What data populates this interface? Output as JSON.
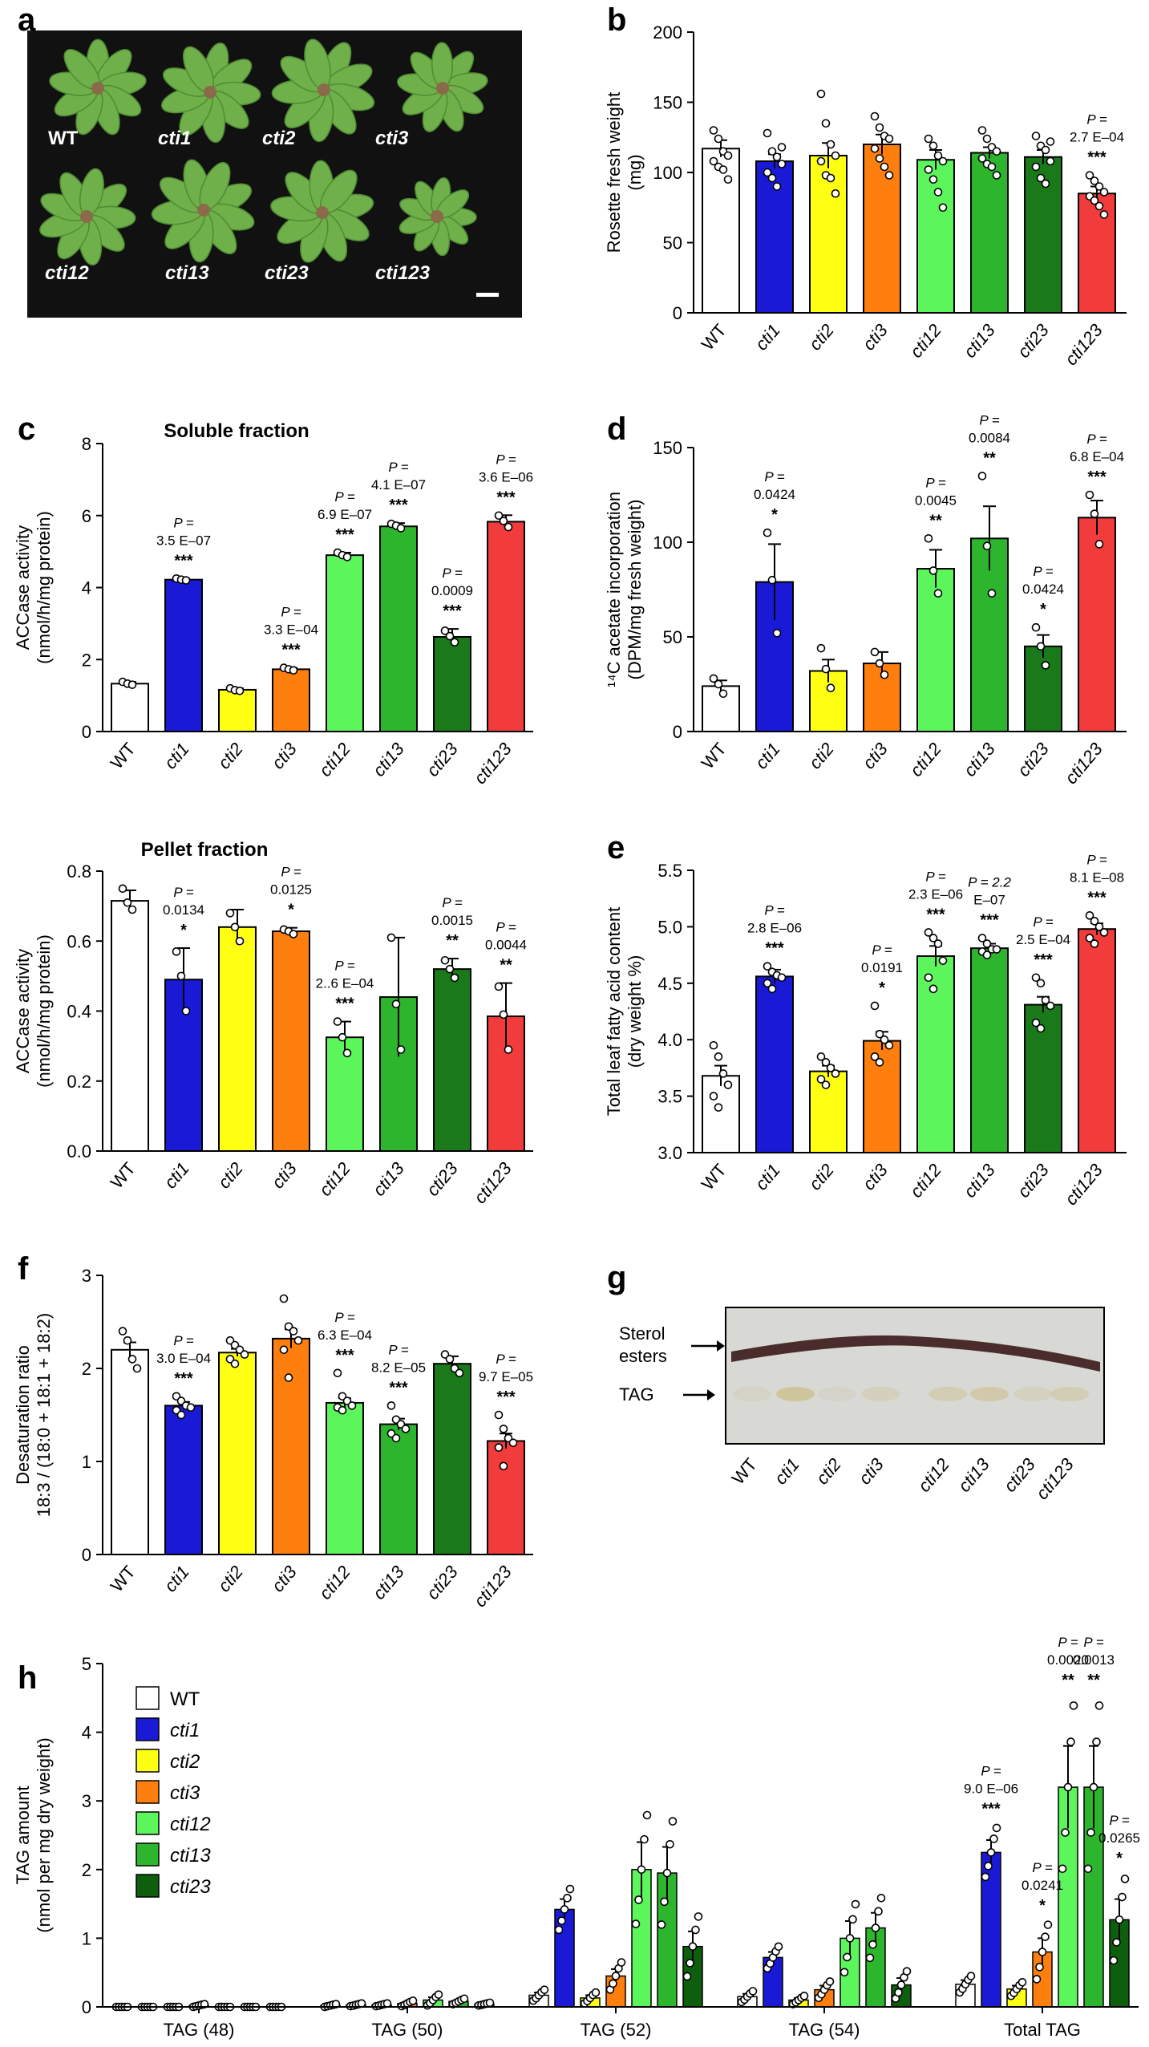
{
  "panel_letters": [
    "a",
    "b",
    "c",
    "d",
    "e",
    "f",
    "g",
    "h"
  ],
  "photo": {
    "labels": [
      "WT",
      "cti1",
      "cti2",
      "cti3",
      "cti12",
      "cti13",
      "cti23",
      "cti123"
    ],
    "background": "#111111",
    "leaf_color": "#6fb04a"
  },
  "colors": {
    "WT": "#ffffff",
    "cti1": "#1a1ad6",
    "cti2": "#ffff14",
    "cti3": "#ff7f0e",
    "cti12": "#5cf55c",
    "cti13": "#2db52d",
    "cti23": "#1a7a1a",
    "cti123": "#f23c3c",
    "cti23_h": "#0d5e0d",
    "extra_h": "#444444"
  },
  "chart_data": [
    {
      "id": "b",
      "type": "bar",
      "categories": [
        "WT",
        "cti1",
        "cti2",
        "cti3",
        "cti12",
        "cti13",
        "cti23",
        "cti123"
      ],
      "values": [
        117,
        108,
        112,
        120,
        109,
        114,
        111,
        85
      ],
      "errors": [
        6,
        5,
        9,
        7,
        7,
        4,
        5,
        5
      ],
      "points": [
        [
          130,
          124,
          115,
          112,
          108,
          104,
          102,
          95
        ],
        [
          128,
          115,
          111,
          106,
          100,
          96,
          90,
          118
        ],
        [
          156,
          135,
          120,
          112,
          108,
          98,
          96,
          85
        ],
        [
          140,
          132,
          126,
          124,
          117,
          110,
          104,
          98
        ],
        [
          124,
          119,
          112,
          108,
          102,
          95,
          86,
          75
        ],
        [
          130,
          124,
          118,
          115,
          110,
          106,
          104,
          98
        ],
        [
          126,
          119,
          116,
          108,
          104,
          96,
          92,
          122
        ],
        [
          98,
          94,
          90,
          86,
          83,
          80,
          76,
          70
        ]
      ],
      "ylabel": "Rosette fresh weight\n(mg)",
      "ylim": [
        0,
        200
      ],
      "yticks": [
        0,
        50,
        100,
        150,
        200
      ],
      "annotations": [
        {
          "index": 7,
          "p": [
            "P =",
            "2.7 E–04"
          ],
          "stars": "***"
        }
      ]
    },
    {
      "id": "c_soluble",
      "type": "bar",
      "title": "Soluble fraction",
      "categories": [
        "WT",
        "cti1",
        "cti2",
        "cti3",
        "cti12",
        "cti13",
        "cti23",
        "cti123"
      ],
      "values": [
        1.33,
        4.22,
        1.16,
        1.73,
        4.9,
        5.7,
        2.63,
        5.83
      ],
      "errors": [
        0.05,
        0.03,
        0.04,
        0.04,
        0.07,
        0.09,
        0.22,
        0.18
      ],
      "points": [
        [
          1.38,
          1.33,
          1.3
        ],
        [
          4.25,
          4.22,
          4.2
        ],
        [
          1.2,
          1.15,
          1.13
        ],
        [
          1.77,
          1.73,
          1.7
        ],
        [
          4.97,
          4.9,
          4.85
        ],
        [
          5.77,
          5.72,
          5.65
        ],
        [
          2.8,
          2.65,
          2.48
        ],
        [
          6.0,
          5.85,
          5.68
        ]
      ],
      "ylabel": "ACCase activity\n(nmol/h/mg protein)",
      "ylim": [
        0,
        8
      ],
      "yticks": [
        0,
        2,
        4,
        6,
        8
      ],
      "annotations": [
        {
          "index": 1,
          "p": [
            "P =",
            "3.5 E–07"
          ],
          "stars": "***"
        },
        {
          "index": 3,
          "p": [
            "P =",
            "3.3 E–04"
          ],
          "stars": "***"
        },
        {
          "index": 4,
          "p": [
            "P =",
            "6.9 E–07"
          ],
          "stars": "***"
        },
        {
          "index": 5,
          "p": [
            "P =",
            "4.1 E–07"
          ],
          "stars": "***"
        },
        {
          "index": 6,
          "p": [
            "P =",
            "0.0009"
          ],
          "stars": "***"
        },
        {
          "index": 7,
          "p": [
            "P =",
            "3.6 E–06"
          ],
          "stars": "***"
        }
      ]
    },
    {
      "id": "c_pellet",
      "type": "bar",
      "title": "Pellet fraction",
      "categories": [
        "WT",
        "cti1",
        "cti2",
        "cti3",
        "cti12",
        "cti13",
        "cti23",
        "cti123"
      ],
      "values": [
        0.715,
        0.49,
        0.64,
        0.628,
        0.325,
        0.44,
        0.52,
        0.385
      ],
      "errors": [
        0.03,
        0.09,
        0.05,
        0.01,
        0.045,
        0.17,
        0.03,
        0.095
      ],
      "points": [
        [
          0.75,
          0.71,
          0.69
        ],
        [
          0.57,
          0.5,
          0.4
        ],
        [
          0.68,
          0.64,
          0.6
        ],
        [
          0.633,
          0.628,
          0.62
        ],
        [
          0.37,
          0.325,
          0.28
        ],
        [
          0.61,
          0.42,
          0.29
        ],
        [
          0.545,
          0.52,
          0.495
        ],
        [
          0.47,
          0.39,
          0.29
        ]
      ],
      "ylabel": "ACCase activity\n(nmol/h/mg protein)",
      "ylim": [
        0,
        0.8
      ],
      "yticks": [
        0,
        0.2,
        0.4,
        0.6,
        0.8
      ],
      "annotations": [
        {
          "index": 1,
          "p": [
            "P =",
            "0.0134"
          ],
          "stars": "*"
        },
        {
          "index": 3,
          "p": [
            "P =",
            "0.0125"
          ],
          "stars": "*"
        },
        {
          "index": 4,
          "p": [
            "P =",
            "2..6 E–04"
          ],
          "stars": "***"
        },
        {
          "index": 6,
          "p": [
            "P =",
            "0.0015"
          ],
          "stars": "**"
        },
        {
          "index": 7,
          "p": [
            "P =",
            "0.0044"
          ],
          "stars": "**"
        }
      ]
    },
    {
      "id": "d",
      "type": "bar",
      "categories": [
        "WT",
        "cti1",
        "cti2",
        "cti3",
        "cti12",
        "cti13",
        "cti23",
        "cti123"
      ],
      "values": [
        24,
        79,
        32,
        36,
        86,
        102,
        45,
        113
      ],
      "errors": [
        3,
        20,
        6,
        6,
        10,
        17,
        6,
        9
      ],
      "points": [
        [
          28,
          25,
          20
        ],
        [
          105,
          80,
          52
        ],
        [
          44,
          33,
          23
        ],
        [
          42,
          36,
          30
        ],
        [
          102,
          85,
          73
        ],
        [
          135,
          98,
          73
        ],
        [
          55,
          45,
          35
        ],
        [
          125,
          115,
          99
        ]
      ],
      "ylabel": "¹⁴C acetate incorporation\n(DPM/mg fresh weight)",
      "ylim": [
        0,
        150
      ],
      "yticks": [
        0,
        50,
        100,
        150
      ],
      "annotations": [
        {
          "index": 1,
          "p": [
            "P =",
            "0.0424"
          ],
          "stars": "*"
        },
        {
          "index": 4,
          "p": [
            "P =",
            "0.0045"
          ],
          "stars": "**"
        },
        {
          "index": 5,
          "p": [
            "P =",
            "0.0084"
          ],
          "stars": "**"
        },
        {
          "index": 6,
          "p": [
            "P =",
            "0.0424"
          ],
          "stars": "*"
        },
        {
          "index": 7,
          "p": [
            "P =",
            "6.8 E–04"
          ],
          "stars": "***"
        }
      ]
    },
    {
      "id": "e",
      "type": "bar",
      "categories": [
        "WT",
        "cti1",
        "cti2",
        "cti3",
        "cti12",
        "cti13",
        "cti23",
        "cti123"
      ],
      "values": [
        3.68,
        4.56,
        3.72,
        3.99,
        4.74,
        4.81,
        4.31,
        4.98
      ],
      "errors": [
        0.09,
        0.06,
        0.05,
        0.08,
        0.09,
        0.04,
        0.07,
        0.05
      ],
      "points": [
        [
          3.95,
          3.85,
          3.7,
          3.6,
          3.5,
          3.4
        ],
        [
          4.65,
          4.6,
          4.57,
          4.55,
          4.5,
          4.45
        ],
        [
          3.85,
          3.8,
          3.75,
          3.7,
          3.65,
          3.6
        ],
        [
          4.3,
          4.05,
          4.0,
          3.95,
          3.85,
          3.8
        ],
        [
          4.95,
          4.9,
          4.85,
          4.7,
          4.55,
          4.45
        ],
        [
          4.9,
          4.85,
          4.8,
          4.8,
          4.78,
          4.75
        ],
        [
          4.55,
          4.5,
          4.35,
          4.3,
          4.15,
          4.1
        ],
        [
          5.1,
          5.05,
          5.0,
          4.95,
          4.9,
          4.85
        ]
      ],
      "ylabel": "Total leaf fatty acid content\n(dry weight %)",
      "ylim": [
        3.0,
        5.5
      ],
      "yticks": [
        3.0,
        3.5,
        4.0,
        4.5,
        5.0,
        5.5
      ],
      "annotations": [
        {
          "index": 1,
          "p": [
            "P =",
            "2.8 E–06"
          ],
          "stars": "***"
        },
        {
          "index": 3,
          "p": [
            "P =",
            "0.0191"
          ],
          "stars": "*"
        },
        {
          "index": 4,
          "p": [
            "P =",
            "2.3 E–06"
          ],
          "stars": "***"
        },
        {
          "index": 5,
          "p": [
            "P = 2.2",
            "E–07"
          ],
          "stars": "***"
        },
        {
          "index": 6,
          "p": [
            "P =",
            "2.5 E–04"
          ],
          "stars": "***"
        },
        {
          "index": 7,
          "p": [
            "P =",
            "8.1 E–08"
          ],
          "stars": "***"
        }
      ]
    },
    {
      "id": "f",
      "type": "bar",
      "categories": [
        "WT",
        "cti1",
        "cti2",
        "cti3",
        "cti12",
        "cti13",
        "cti23",
        "cti123"
      ],
      "values": [
        2.2,
        1.6,
        2.17,
        2.32,
        1.63,
        1.4,
        2.05,
        1.22
      ],
      "errors": [
        0.08,
        0.04,
        0.04,
        0.1,
        0.05,
        0.06,
        0.08,
        0.08
      ],
      "points": [
        [
          2.4,
          2.3,
          2.1,
          2.0
        ],
        [
          1.7,
          1.65,
          1.6,
          1.58,
          1.55,
          1.5
        ],
        [
          2.3,
          2.25,
          2.2,
          2.15,
          2.1,
          2.05
        ],
        [
          2.75,
          2.45,
          2.4,
          2.3,
          2.2,
          1.9
        ],
        [
          1.95,
          1.7,
          1.65,
          1.6,
          1.58,
          1.55
        ],
        [
          1.6,
          1.45,
          1.4,
          1.35,
          1.3,
          1.25
        ],
        [
          2.15,
          2.1,
          2.0,
          1.95
        ],
        [
          1.5,
          1.35,
          1.25,
          1.2,
          1.15,
          0.95
        ]
      ],
      "ylabel": "Desaturation ratio\n18:3 / (18:0 + 18:1 + 18:2)",
      "ylim": [
        0,
        3
      ],
      "yticks": [
        0,
        1,
        2,
        3
      ],
      "annotations": [
        {
          "index": 1,
          "p": [
            "P =",
            "3.0 E–04"
          ],
          "stars": "***"
        },
        {
          "index": 4,
          "p": [
            "P =",
            "6.3 E–04"
          ],
          "stars": "***"
        },
        {
          "index": 5,
          "p": [
            "P =",
            "8.2 E–05"
          ],
          "stars": "***"
        },
        {
          "index": 7,
          "p": [
            "P =",
            "9.7 E–05"
          ],
          "stars": "***"
        }
      ]
    },
    {
      "id": "h",
      "type": "bar",
      "groups": [
        "TAG (48)",
        "TAG (50)",
        "TAG (52)",
        "TAG (54)",
        "Total TAG"
      ],
      "series": [
        {
          "name": "WT",
          "values": [
            0.0,
            0.02,
            0.17,
            0.15,
            0.33
          ],
          "errors": [
            0.0,
            0.01,
            0.04,
            0.04,
            0.06
          ]
        },
        {
          "name": "cti1",
          "values": [
            0.0,
            0.03,
            1.42,
            0.72,
            2.25
          ],
          "errors": [
            0.0,
            0.01,
            0.15,
            0.08,
            0.18
          ]
        },
        {
          "name": "cti2",
          "values": [
            0.0,
            0.03,
            0.13,
            0.1,
            0.26
          ],
          "errors": [
            0.0,
            0.01,
            0.04,
            0.03,
            0.05
          ]
        },
        {
          "name": "cti3",
          "values": [
            0.02,
            0.05,
            0.45,
            0.25,
            0.8
          ],
          "errors": [
            0.01,
            0.02,
            0.1,
            0.06,
            0.2
          ]
        },
        {
          "name": "cti12",
          "values": [
            0.0,
            0.1,
            2.0,
            1.0,
            3.2
          ],
          "errors": [
            0.0,
            0.04,
            0.4,
            0.25,
            0.6
          ]
        },
        {
          "name": "cti13",
          "values": [
            0.0,
            0.08,
            1.95,
            1.15,
            3.2
          ],
          "errors": [
            0.0,
            0.02,
            0.38,
            0.22,
            0.6
          ]
        },
        {
          "name": "cti23",
          "values": [
            0.0,
            0.04,
            0.88,
            0.32,
            1.27
          ],
          "errors": [
            0.0,
            0.01,
            0.22,
            0.1,
            0.3
          ]
        }
      ],
      "ylabel": "TAG amount\n(nmol per mg dry weight)",
      "ylim": [
        0,
        5
      ],
      "yticks": [
        0,
        1,
        2,
        3,
        4,
        5
      ],
      "annotations": [
        {
          "group": 4,
          "series": 1,
          "p": [
            "P =",
            "9.0 E–06"
          ],
          "stars": "***"
        },
        {
          "group": 4,
          "series": 3,
          "p": [
            "P =",
            "0.0241"
          ],
          "stars": "*"
        },
        {
          "group": 4,
          "series": 4,
          "p": [
            "P =",
            "0.0020"
          ],
          "stars": "**"
        },
        {
          "group": 4,
          "series": 5,
          "p": [
            "P =",
            "0.0013"
          ],
          "stars": "**"
        },
        {
          "group": 4,
          "series": 6,
          "p": [
            "P =",
            "0.0265"
          ],
          "stars": "*"
        }
      ]
    }
  ],
  "tlc": {
    "labels": [
      "WT",
      "cti1",
      "cti2",
      "cti3",
      "cti12",
      "cti13",
      "cti23",
      "cti123"
    ],
    "sterol_label": [
      "Sterol",
      "esters"
    ],
    "tag_label": "TAG"
  }
}
